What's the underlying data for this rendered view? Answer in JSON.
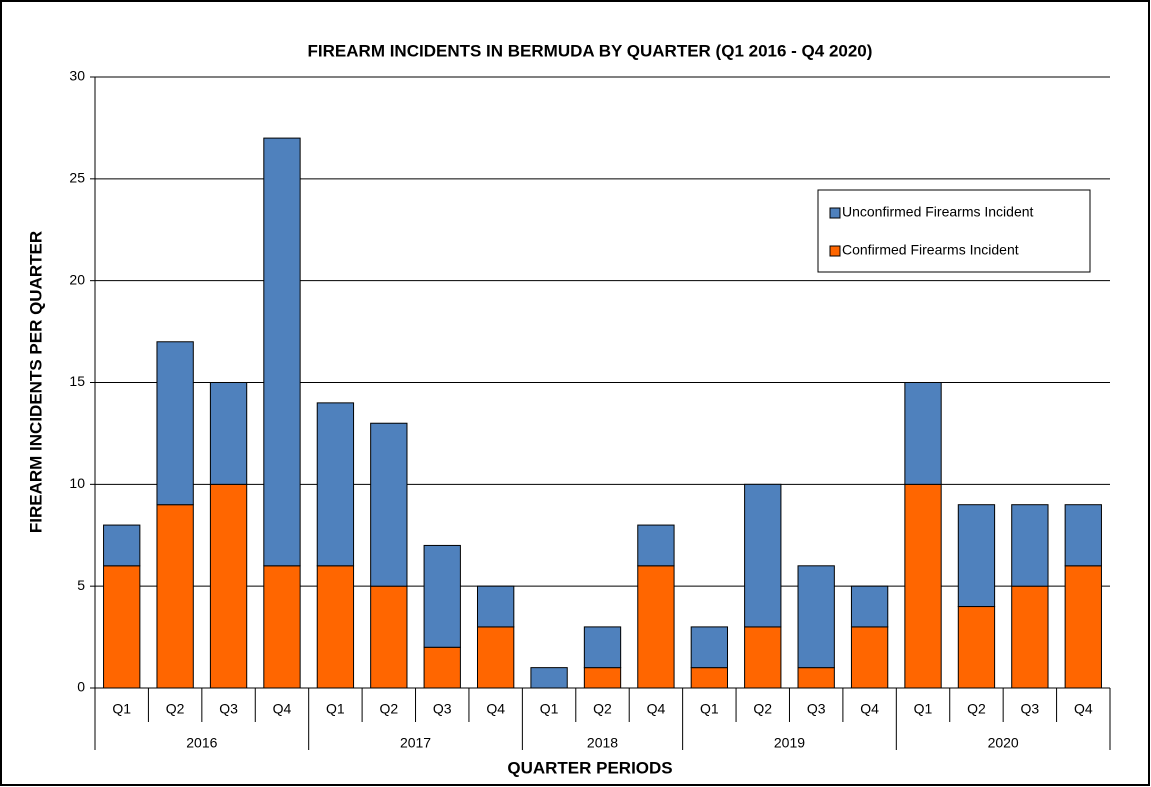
{
  "chart_data": {
    "type": "stacked_bar",
    "title": "FIREARM INCIDENTS IN BERMUDA BY QUARTER (Q1 2016 - Q4 2020)",
    "x_label": "QUARTER PERIODS",
    "y_label": "FIREARM INCIDENTS PER QUARTER",
    "groups": [
      {
        "label": "2016",
        "categories": [
          "Q1",
          "Q2",
          "Q3",
          "Q4"
        ]
      },
      {
        "label": "2017",
        "categories": [
          "Q1",
          "Q2",
          "Q3",
          "Q4"
        ]
      },
      {
        "label": "2018",
        "categories": [
          "Q1",
          "Q2",
          "Q4"
        ]
      },
      {
        "label": "2019",
        "categories": [
          "Q1",
          "Q2",
          "Q3",
          "Q4"
        ]
      },
      {
        "label": "2020",
        "categories": [
          "Q1",
          "Q2",
          "Q3",
          "Q4"
        ]
      }
    ],
    "series": [
      {
        "name": "Confirmed Firearms Incident",
        "color": "#ff6600",
        "values": [
          6,
          9,
          10,
          6,
          6,
          5,
          2,
          3,
          0,
          1,
          6,
          1,
          3,
          1,
          3,
          10,
          4,
          5,
          6
        ]
      },
      {
        "name": "Unconfirmed Firearms Incident",
        "color": "#4f81bd",
        "values": [
          2,
          8,
          5,
          21,
          8,
          8,
          5,
          2,
          1,
          2,
          2,
          2,
          7,
          5,
          2,
          5,
          5,
          4,
          3
        ]
      }
    ],
    "ylim": [
      0,
      30
    ],
    "yticks": [
      0,
      5,
      10,
      15,
      20,
      25,
      30
    ],
    "grid": true,
    "legend": "upper right"
  }
}
